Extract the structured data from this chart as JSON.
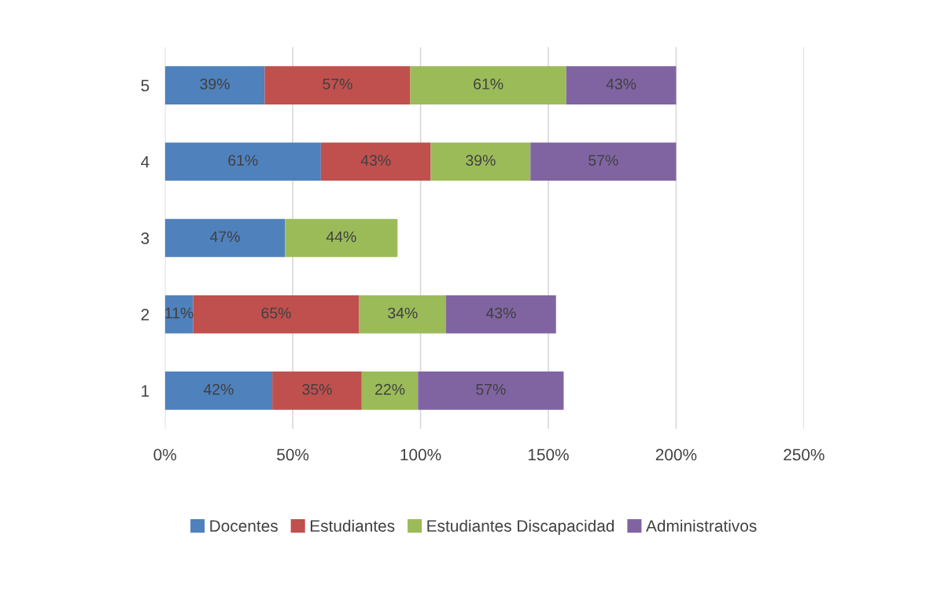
{
  "chart_data": {
    "type": "bar",
    "orientation": "horizontal",
    "stacked": true,
    "categories": [
      "5",
      "4",
      "3",
      "2",
      "1"
    ],
    "series": [
      {
        "name": "Docentes",
        "color": "#4f81bd",
        "values": [
          39,
          61,
          47,
          11,
          42
        ],
        "value_labels": [
          "39%",
          "61%",
          "47%",
          "11%",
          "42%"
        ]
      },
      {
        "name": "Estudiantes",
        "color": "#c0504d",
        "values": [
          57,
          43,
          null,
          65,
          35
        ],
        "value_labels": [
          "57%",
          "43%",
          null,
          "65%",
          "35%"
        ]
      },
      {
        "name": "Estudiantes Discapacidad",
        "color": "#9bbb59",
        "values": [
          61,
          39,
          44,
          34,
          22
        ],
        "value_labels": [
          "61%",
          "39%",
          "44%",
          "34%",
          "22%"
        ]
      },
      {
        "name": "Administrativos",
        "color": "#8064a2",
        "values": [
          43,
          57,
          null,
          43,
          57
        ],
        "value_labels": [
          "43%",
          "57%",
          null,
          "43%",
          "57%"
        ]
      }
    ],
    "xlim": [
      0,
      250
    ],
    "xticks": [
      {
        "value": 0,
        "label": "0%"
      },
      {
        "value": 50,
        "label": "50%"
      },
      {
        "value": 100,
        "label": "100%"
      },
      {
        "value": 150,
        "label": "150%"
      },
      {
        "value": 200,
        "label": "200%"
      },
      {
        "value": 250,
        "label": "250%"
      }
    ],
    "grid": "x",
    "legend": "bottom"
  }
}
